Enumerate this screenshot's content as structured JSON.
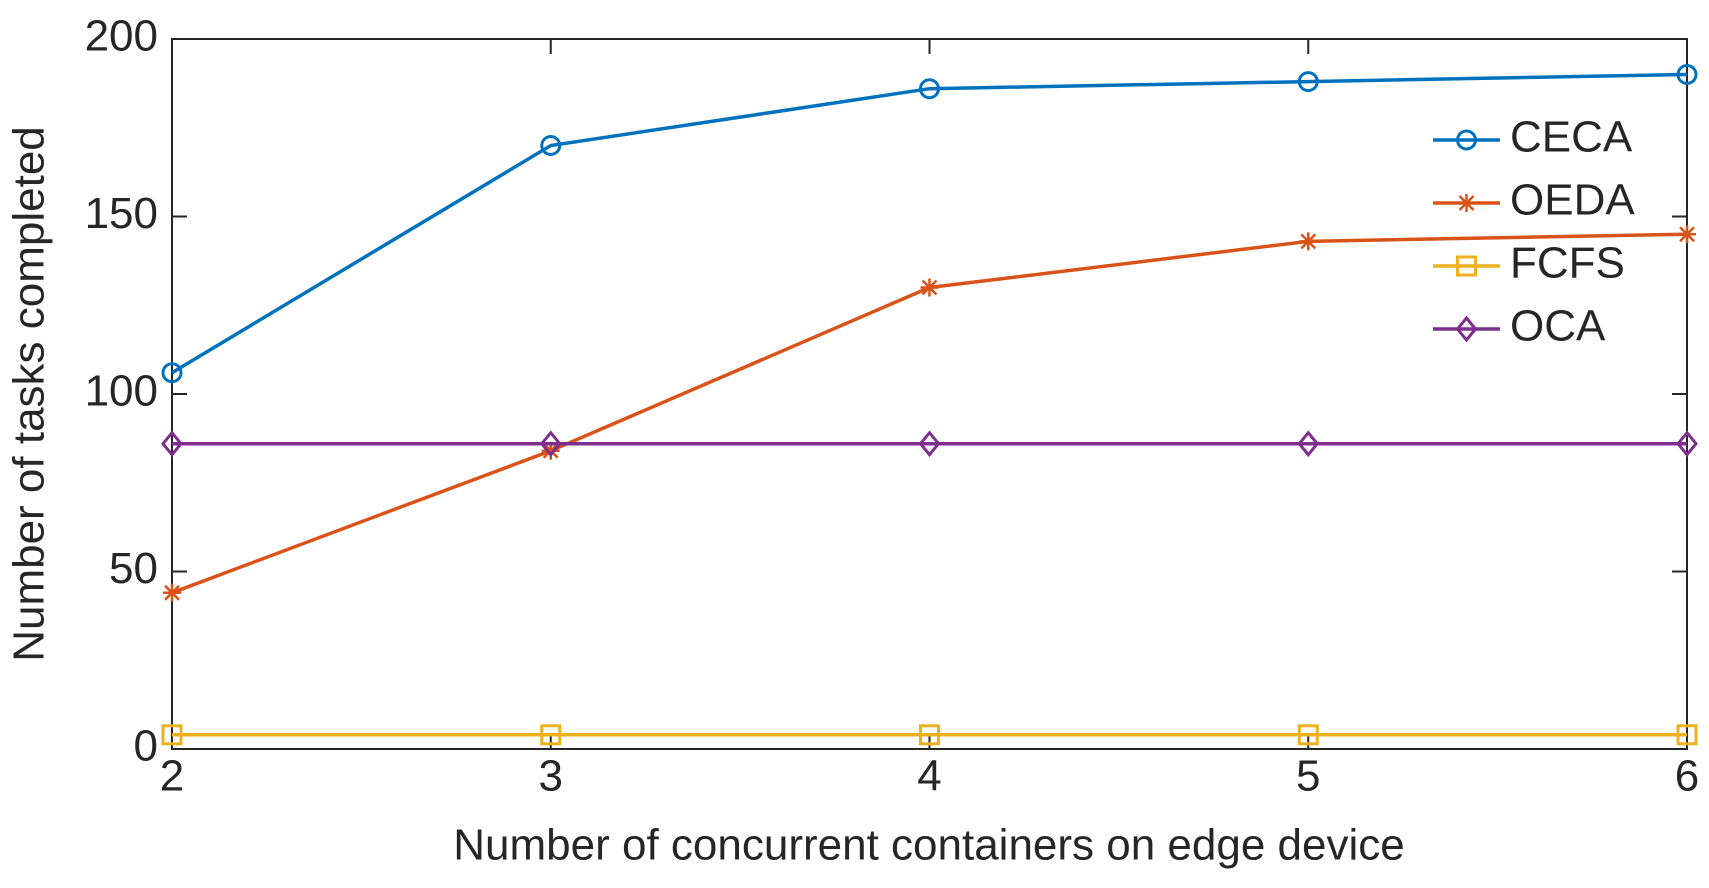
{
  "chart_data": {
    "type": "line",
    "x_label": "Number of concurrent containers on edge device",
    "y_label": "Number of tasks completed",
    "x": [
      2,
      3,
      4,
      5,
      6
    ],
    "series": [
      {
        "name": "CECA",
        "color": "#0072bd",
        "marker": "circle",
        "values": [
          106,
          170,
          186,
          188,
          190
        ]
      },
      {
        "name": "OEDA",
        "color": "#d95319",
        "marker": "asterisk",
        "values": [
          44,
          84,
          130,
          143,
          145
        ]
      },
      {
        "name": "FCFS",
        "color": "#edb120",
        "marker": "square",
        "values": [
          4,
          4,
          4,
          4,
          4
        ]
      },
      {
        "name": "OCA",
        "color": "#7e2f8e",
        "marker": "diamond",
        "values": [
          86,
          86,
          86,
          86,
          86
        ]
      }
    ],
    "xlim": [
      2,
      6
    ],
    "xticks": [
      2,
      3,
      4,
      5,
      6
    ],
    "ylim": [
      0,
      200
    ],
    "yticks": [
      0,
      50,
      100,
      150,
      200
    ],
    "grid": false,
    "legend": "upper right"
  }
}
